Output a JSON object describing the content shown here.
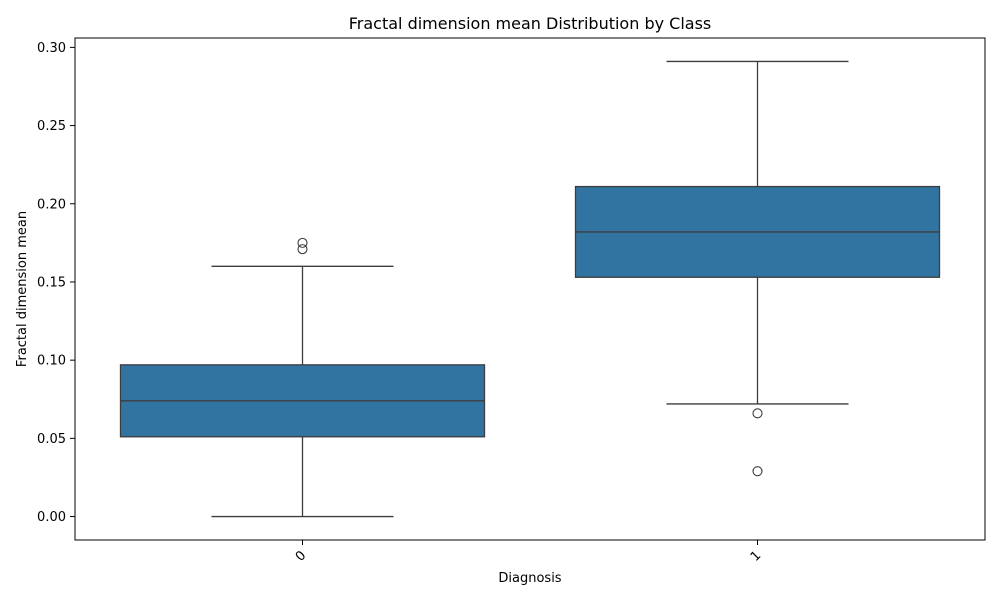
{
  "chart_data": {
    "type": "box",
    "title": "Fractal dimension mean Distribution by Class",
    "xlabel": "Diagnosis",
    "ylabel": "Fractal dimension mean",
    "ylim": [
      -0.015,
      0.306
    ],
    "yticks": [
      "0.00",
      "0.05",
      "0.10",
      "0.15",
      "0.20",
      "0.25",
      "0.30"
    ],
    "ytick_values": [
      0.0,
      0.05,
      0.1,
      0.15,
      0.2,
      0.25,
      0.3
    ],
    "grid": false,
    "categories": [
      "0",
      "1"
    ],
    "boxes": [
      {
        "category": "0",
        "whisker_low": 0.0,
        "q1": 0.051,
        "median": 0.074,
        "q3": 0.097,
        "whisker_high": 0.16,
        "outliers": [
          0.171,
          0.175
        ]
      },
      {
        "category": "1",
        "whisker_low": 0.072,
        "q1": 0.153,
        "median": 0.182,
        "q3": 0.211,
        "whisker_high": 0.291,
        "outliers": [
          0.066,
          0.029
        ]
      }
    ],
    "colors": {
      "box_fill": "#3274a1",
      "line": "#3d3d3d",
      "axis": "#000000"
    }
  }
}
